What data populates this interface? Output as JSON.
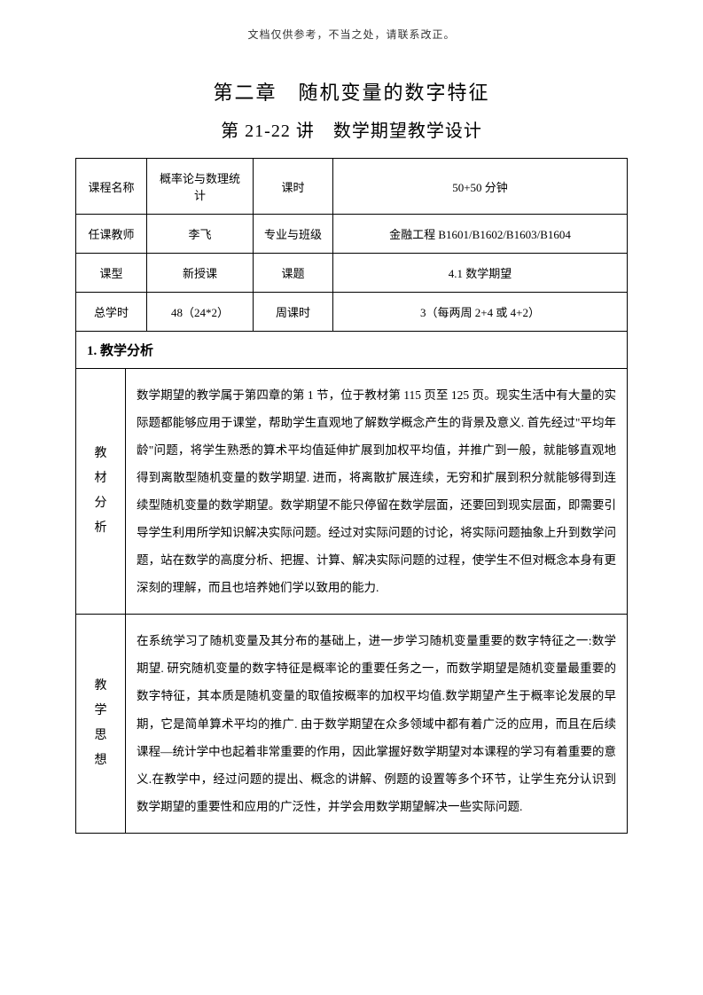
{
  "header": {
    "note": "文档仅供参考，不当之处，请联系改正。"
  },
  "titles": {
    "main": "第二章　随机变量的数字特征",
    "sub": "第 21-22 讲　数学期望教学设计"
  },
  "info": {
    "row1": {
      "label1": "课程名称",
      "value1": "概率论与数理统计",
      "label2": "课时",
      "value2": "50+50 分钟"
    },
    "row2": {
      "label1": "任课教师",
      "value1": "李飞",
      "label2": "专业与班级",
      "value2": "金融工程 B1601/B1602/B1603/B1604"
    },
    "row3": {
      "label1": "课型",
      "value1": "新授课",
      "label2": "课题",
      "value2": "4.1 数学期望"
    },
    "row4": {
      "label1": "总学时",
      "value1": "48（24*2）",
      "label2": "周课时",
      "value2": "3（每两周 2+4 或 4+2）"
    }
  },
  "section": {
    "heading": "1. 教学分析"
  },
  "analysis": {
    "row1": {
      "label": "教材分析",
      "content": "数学期望的教学属于第四章的第 1 节，位于教材第 115 页至 125 页。现实生活中有大量的实际题都能够应用于课堂，帮助学生直观地了解数学概念产生的背景及意义. 首先经过\"平均年龄\"问题，将学生熟悉的算术平均值延伸扩展到加权平均值，并推广到一般，就能够直观地得到离散型随机变量的数学期望. 进而，将离散扩展连续，无穷和扩展到积分就能够得到连续型随机变量的数学期望。数学期望不能只停留在数学层面，还要回到现实层面，即需要引导学生利用所学知识解决实际问题。经过对实际问题的讨论，将实际问题抽象上升到数学问题，站在数学的高度分析、把握、计算、解决实际问题的过程，使学生不但对概念本身有更深刻的理解，而且也培养她们学以致用的能力."
    },
    "row2": {
      "label": "教学思想",
      "content": "在系统学习了随机变量及其分布的基础上，进一步学习随机变量重要的数字特征之一:数学期望. 研究随机变量的数字特征是概率论的重要任务之一，而数学期望是随机变量最重要的数字特征，其本质是随机变量的取值按概率的加权平均值.数学期望产生于概率论发展的早期，它是简单算术平均的推广. 由于数学期望在众多领域中都有着广泛的应用，而且在后续课程—统计学中也起着非常重要的作用，因此掌握好数学期望对本课程的学习有着重要的意义.在教学中，经过问题的提出、概念的讲解、例题的设置等多个环节，让学生充分认识到数学期望的重要性和应用的广泛性，并学会用数学期望解决一些实际问题."
    }
  }
}
